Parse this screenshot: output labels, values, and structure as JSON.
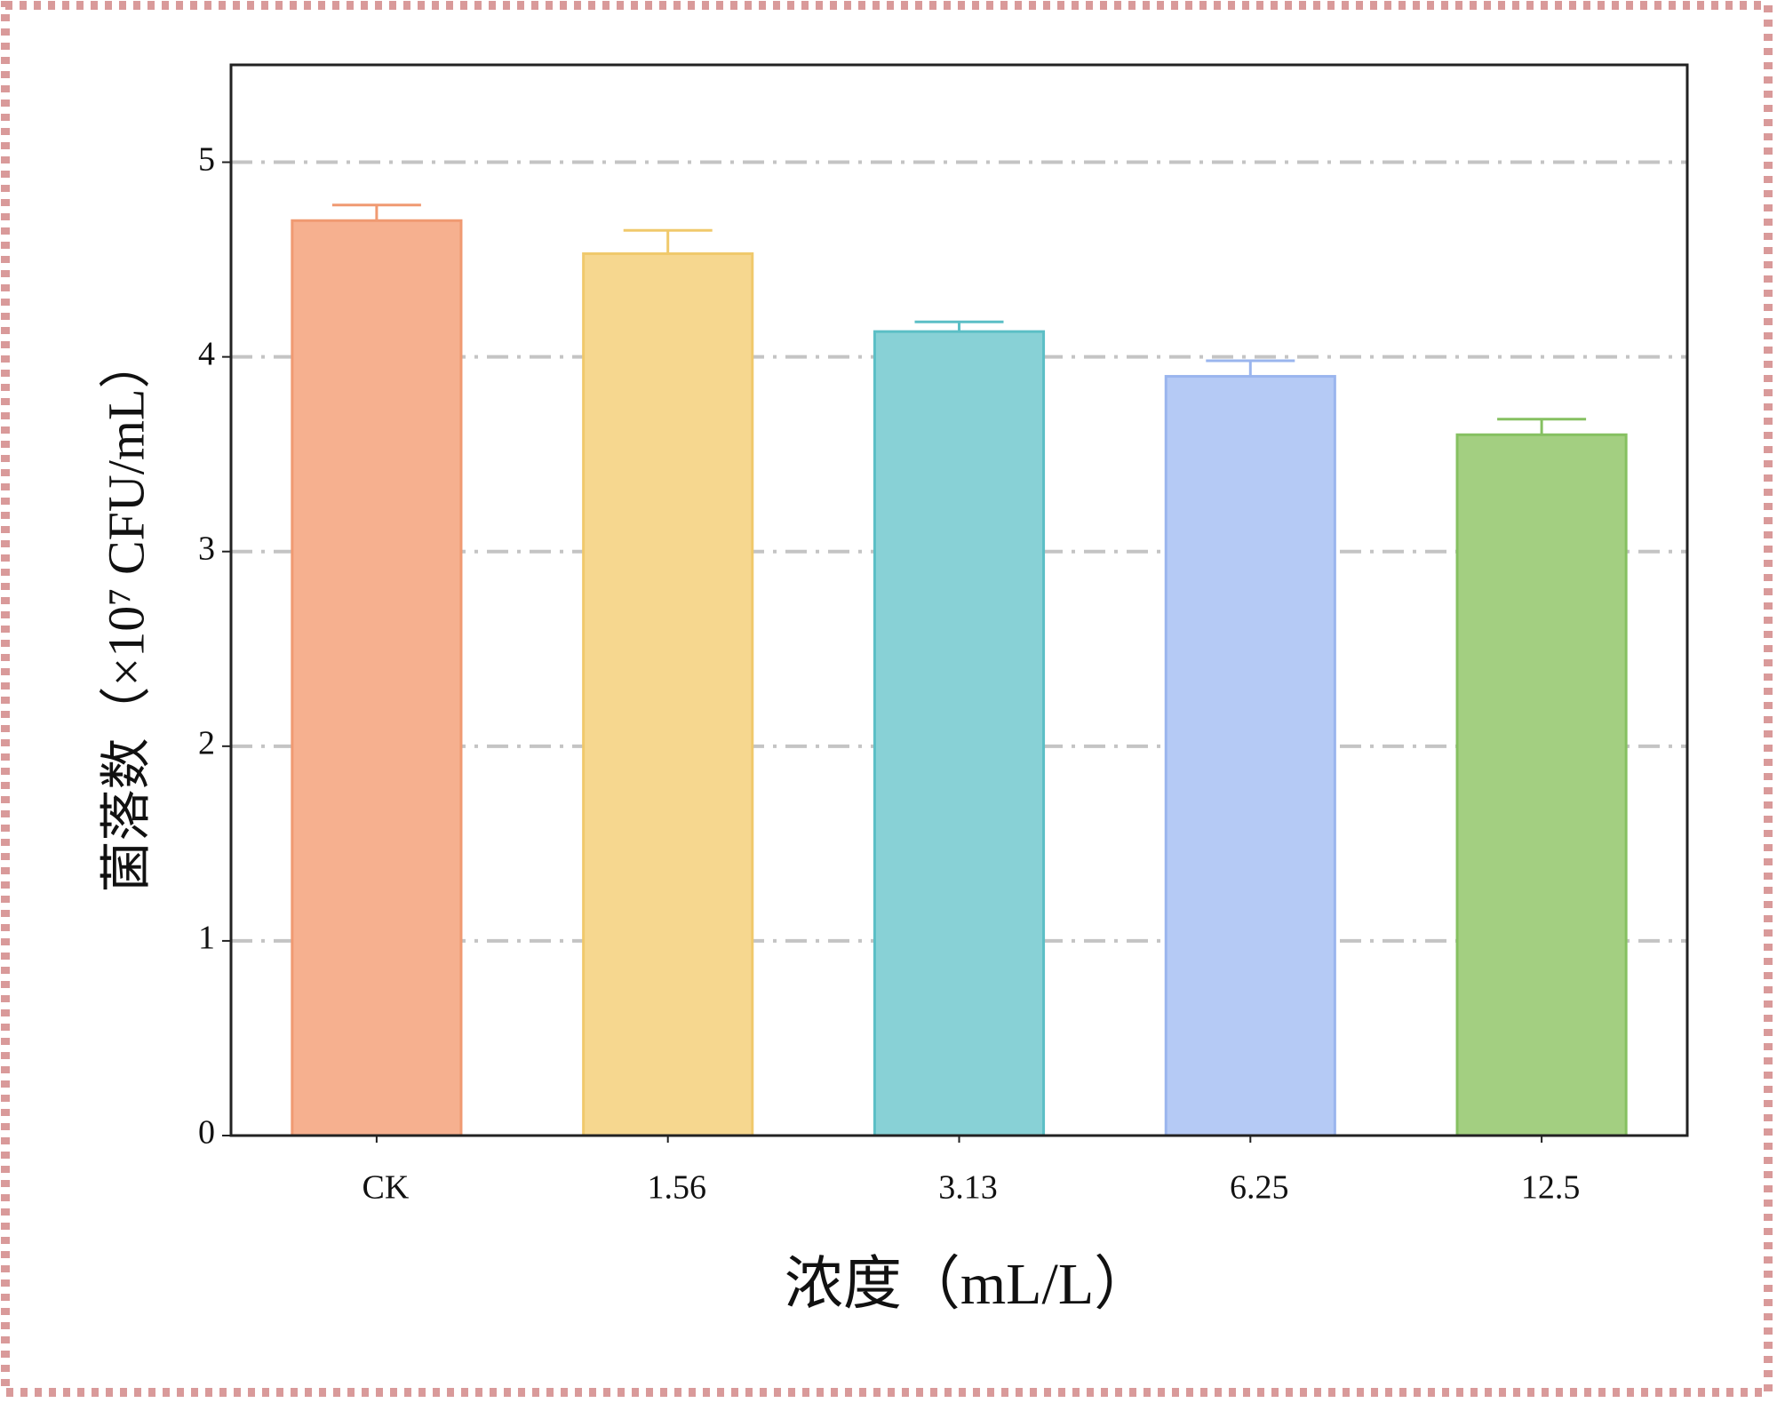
{
  "chart_data": {
    "type": "bar",
    "xlabel": "浓度（mL/L）",
    "ylabel": "菌落数（×10⁷ CFU/mL）",
    "categories": [
      "CK",
      "1.56",
      "3.13",
      "6.25",
      "12.5"
    ],
    "values": [
      4.7,
      4.53,
      4.13,
      3.9,
      3.6
    ],
    "errors": [
      0.08,
      0.12,
      0.05,
      0.08,
      0.08
    ],
    "colors": [
      "#f6b08f",
      "#f6d78f",
      "#88d1d6",
      "#b5caf5",
      "#a3cf81"
    ],
    "edge_colors": [
      "#f09a72",
      "#f0c96c",
      "#5cbfc6",
      "#9ab5ee",
      "#86c061"
    ],
    "ylim": [
      0,
      5.5
    ],
    "yticks": [
      0,
      1,
      2,
      3,
      4,
      5
    ],
    "grid": true
  }
}
